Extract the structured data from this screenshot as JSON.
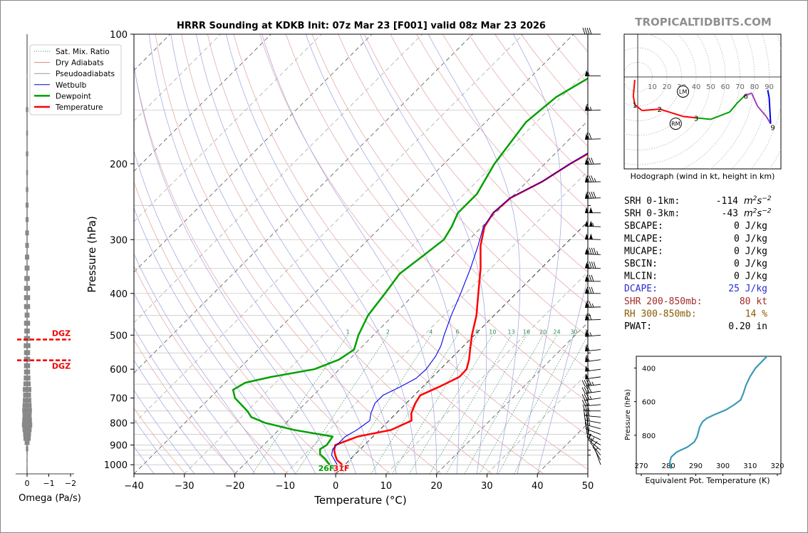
{
  "header": {
    "title": "HRRR Sounding at KDKB Init: 07z Mar 23 [F001] valid 08z Mar 23 2026",
    "watermark": "TROPICALTIDBITS.COM"
  },
  "legend": {
    "items": [
      {
        "label": "Sat. Mix. Ratio",
        "color": "#2e8b57",
        "style": "dotted"
      },
      {
        "label": "Dry Adiabats",
        "color": "#e08080",
        "style": "solid"
      },
      {
        "label": "Pseudoadiabats",
        "color": "#999999",
        "style": "solid"
      },
      {
        "label": "Wetbulb",
        "color": "#0000ee",
        "style": "solid"
      },
      {
        "label": "Dewpoint",
        "color": "#00a000",
        "style": "thick"
      },
      {
        "label": "Temperature",
        "color": "#ff0000",
        "style": "thick"
      }
    ]
  },
  "surface_labels": {
    "dewpoint": "26F",
    "temperature": "31F"
  },
  "omega": {
    "xlabel": "Omega (Pa/s)",
    "ticks": [
      "0",
      "−1",
      "−2"
    ],
    "dgz_label": "DGZ",
    "dgz_pressures": [
      512,
      572
    ]
  },
  "hodograph": {
    "caption": "Hodograph (wind in kt, height in km)",
    "ring_labels": [
      "10",
      "20",
      "30",
      "40",
      "50",
      "60",
      "70",
      "80",
      "90"
    ],
    "height_labels": [
      "1",
      "2",
      "3",
      "6",
      "9"
    ],
    "lm_label": "LM",
    "rm_label": "RM"
  },
  "indices": [
    {
      "label": "SRH 0-1km:",
      "value": "-114",
      "unit": "m2s-2",
      "color": "#000000"
    },
    {
      "label": "SRH 0-3km:",
      "value": "-43",
      "unit": "m2s-2",
      "color": "#000000"
    },
    {
      "label": "SBCAPE:",
      "value": "0 J/kg",
      "color": "#000000"
    },
    {
      "label": "MLCAPE:",
      "value": "0 J/kg",
      "color": "#000000"
    },
    {
      "label": "MUCAPE:",
      "value": "0 J/kg",
      "color": "#000000"
    },
    {
      "label": "SBCIN:",
      "value": "0 J/kg",
      "color": "#000000"
    },
    {
      "label": "MLCIN:",
      "value": "0 J/kg",
      "color": "#000000"
    },
    {
      "label": "DCAPE:",
      "value": "25 J/kg",
      "color": "#2a2ad0"
    },
    {
      "label": "SHR 200-850mb:",
      "value": "80 kt",
      "color": "#a52a2a"
    },
    {
      "label": "RH 300-850mb:",
      "value": "14 %",
      "color": "#8b5a00"
    },
    {
      "label": "PWAT:",
      "value": "0.20 in",
      "color": "#000000"
    }
  ],
  "theta_e": {
    "xlabel": "Equivalent Pot. Temperature (K)",
    "ylabel": "Pressure (hPa)",
    "x_ticks": [
      "270",
      "280",
      "290",
      "300",
      "310",
      "320"
    ],
    "y_ticks": [
      "400",
      "600",
      "800"
    ]
  },
  "chart_data": {
    "type": "line",
    "title": "HRRR Sounding at KDKB Init: 07z Mar 23 [F001] valid 08z Mar 23 2026",
    "xlabel": "Temperature (°C)",
    "ylabel": "Pressure (hPa)",
    "x_ticks": [
      -40,
      -30,
      -20,
      -10,
      0,
      10,
      20,
      30,
      40,
      50
    ],
    "y_ticks": [
      100,
      200,
      300,
      400,
      500,
      600,
      700,
      800,
      900,
      1000
    ],
    "xlim": [
      -40,
      50
    ],
    "ylim": [
      1050,
      100
    ],
    "y_scale": "log",
    "mixing_ratio_labels": [
      "1",
      "2",
      "4",
      "6",
      "8",
      "10",
      "13",
      "16",
      "20",
      "24",
      "30",
      "36"
    ],
    "series": [
      {
        "name": "Temperature",
        "color": "#ff0000",
        "points": [
          [
            1000,
            -0.5
          ],
          [
            975,
            -2.5
          ],
          [
            950,
            -3.8
          ],
          [
            925,
            -5
          ],
          [
            900,
            -5.8
          ],
          [
            860,
            -3
          ],
          [
            830,
            2.3
          ],
          [
            790,
            4.5
          ],
          [
            760,
            3
          ],
          [
            720,
            1.8
          ],
          [
            690,
            1.2
          ],
          [
            660,
            3.2
          ],
          [
            625,
            5.3
          ],
          [
            600,
            5.2
          ],
          [
            570,
            3.8
          ],
          [
            540,
            2
          ],
          [
            500,
            -0.5
          ],
          [
            450,
            -3.5
          ],
          [
            400,
            -7.5
          ],
          [
            350,
            -12
          ],
          [
            310,
            -16.5
          ],
          [
            280,
            -19.5
          ],
          [
            260,
            -20.5
          ],
          [
            240,
            -20
          ],
          [
            220,
            -17
          ],
          [
            200,
            -15
          ],
          [
            180,
            -12
          ],
          [
            160,
            -10
          ],
          [
            140,
            -8
          ],
          [
            120,
            -7
          ],
          [
            100,
            -7.5
          ]
        ]
      },
      {
        "name": "Dewpoint",
        "color": "#00a000",
        "points": [
          [
            1000,
            -3
          ],
          [
            970,
            -5
          ],
          [
            945,
            -7
          ],
          [
            920,
            -8
          ],
          [
            900,
            -7.5
          ],
          [
            860,
            -8
          ],
          [
            830,
            -17
          ],
          [
            800,
            -24
          ],
          [
            775,
            -28
          ],
          [
            750,
            -30
          ],
          [
            700,
            -35
          ],
          [
            670,
            -37
          ],
          [
            645,
            -36
          ],
          [
            625,
            -32
          ],
          [
            600,
            -25
          ],
          [
            570,
            -22
          ],
          [
            540,
            -21
          ],
          [
            500,
            -23
          ],
          [
            450,
            -25
          ],
          [
            400,
            -26
          ],
          [
            360,
            -27
          ],
          [
            330,
            -26
          ],
          [
            300,
            -25
          ],
          [
            280,
            -26
          ],
          [
            260,
            -27.5
          ],
          [
            235,
            -27.5
          ],
          [
            200,
            -30
          ],
          [
            160,
            -32
          ],
          [
            140,
            -31
          ],
          [
            120,
            -27
          ],
          [
            100,
            -22
          ]
        ]
      },
      {
        "name": "Wetbulb",
        "color": "#0000ee",
        "points": [
          [
            1000,
            -1.5
          ],
          [
            950,
            -4.5
          ],
          [
            920,
            -5.5
          ],
          [
            900,
            -5.5
          ],
          [
            860,
            -5.5
          ],
          [
            830,
            -4.5
          ],
          [
            790,
            -3.8
          ],
          [
            760,
            -5
          ],
          [
            720,
            -6.2
          ],
          [
            690,
            -6.2
          ],
          [
            660,
            -4.5
          ],
          [
            630,
            -3
          ],
          [
            600,
            -2.8
          ],
          [
            560,
            -3.5
          ],
          [
            530,
            -4.5
          ],
          [
            500,
            -6
          ],
          [
            450,
            -8.5
          ],
          [
            400,
            -11
          ],
          [
            350,
            -14
          ],
          [
            310,
            -17
          ],
          [
            280,
            -19.7
          ],
          [
            260,
            -20.5
          ],
          [
            240,
            -20.2
          ],
          [
            220,
            -17
          ],
          [
            200,
            -15
          ],
          [
            180,
            -12.5
          ],
          [
            160,
            -10.5
          ],
          [
            140,
            -8.5
          ],
          [
            120,
            -7.5
          ],
          [
            100,
            -7.5
          ]
        ]
      }
    ],
    "omega_bars_pa_s": [
      [
        1000,
        0
      ],
      [
        960,
        -0.1
      ],
      [
        920,
        -0.4
      ],
      [
        890,
        -0.8
      ],
      [
        870,
        -1.2
      ],
      [
        850,
        -1.3
      ],
      [
        830,
        -1.5
      ],
      [
        810,
        -1.7
      ],
      [
        790,
        -1.6
      ],
      [
        770,
        -1.5
      ],
      [
        750,
        -1.6
      ],
      [
        730,
        -1.5
      ],
      [
        710,
        -1.4
      ],
      [
        690,
        -1.3
      ],
      [
        670,
        -1.4
      ],
      [
        650,
        -1.2
      ],
      [
        630,
        -1.1
      ],
      [
        610,
        -1.0
      ],
      [
        590,
        -1.0
      ],
      [
        570,
        -1.0
      ],
      [
        550,
        -1.0
      ],
      [
        530,
        -1.1
      ],
      [
        510,
        -1.0
      ],
      [
        490,
        -0.9
      ],
      [
        470,
        -1.0
      ],
      [
        450,
        -0.8
      ],
      [
        430,
        -1.0
      ],
      [
        410,
        -1.0
      ],
      [
        390,
        -1.0
      ],
      [
        370,
        -0.9
      ],
      [
        350,
        -0.8
      ],
      [
        330,
        -0.7
      ],
      [
        310,
        -0.6
      ],
      [
        290,
        -0.6
      ],
      [
        270,
        -0.5
      ],
      [
        250,
        -0.5
      ],
      [
        230,
        -0.4
      ],
      [
        210,
        -0.3
      ],
      [
        190,
        -0.4
      ],
      [
        170,
        -0.3
      ],
      [
        150,
        -0.4
      ],
      [
        125,
        -0.1
      ]
    ],
    "winds_dir_kt": [
      [
        1000,
        340,
        5
      ],
      [
        975,
        330,
        8
      ],
      [
        950,
        320,
        12
      ],
      [
        925,
        310,
        15
      ],
      [
        900,
        300,
        17
      ],
      [
        875,
        295,
        20
      ],
      [
        850,
        290,
        22
      ],
      [
        825,
        285,
        24
      ],
      [
        800,
        280,
        25
      ],
      [
        775,
        275,
        28
      ],
      [
        750,
        270,
        30
      ],
      [
        725,
        265,
        32
      ],
      [
        700,
        262,
        36
      ],
      [
        675,
        262,
        40
      ],
      [
        650,
        262,
        44
      ],
      [
        625,
        262,
        50
      ],
      [
        600,
        262,
        54
      ],
      [
        570,
        262,
        58
      ],
      [
        540,
        264,
        62
      ],
      [
        500,
        265,
        66
      ],
      [
        460,
        268,
        70
      ],
      [
        430,
        268,
        74
      ],
      [
        400,
        270,
        78
      ],
      [
        375,
        270,
        82
      ],
      [
        350,
        272,
        88
      ],
      [
        325,
        272,
        95
      ],
      [
        300,
        272,
        102
      ],
      [
        280,
        272,
        105
      ],
      [
        260,
        270,
        100
      ],
      [
        240,
        268,
        92
      ],
      [
        220,
        268,
        85
      ],
      [
        200,
        268,
        78
      ],
      [
        175,
        268,
        72
      ],
      [
        150,
        268,
        66
      ],
      [
        125,
        270,
        54
      ],
      [
        100,
        270,
        40
      ]
    ],
    "hodograph_km": [
      [
        0,
        -2,
        -2
      ],
      [
        0.5,
        -3,
        -13
      ],
      [
        1,
        -2,
        -19
      ],
      [
        1.5,
        3,
        -23
      ],
      [
        2,
        15,
        -22
      ],
      [
        2.5,
        31,
        -27
      ],
      [
        3,
        40,
        -28
      ],
      [
        3.5,
        50,
        -29
      ],
      [
        4,
        63,
        -24
      ],
      [
        5,
        68,
        -18
      ],
      [
        6,
        73,
        -13
      ],
      [
        6.5,
        78,
        -11
      ],
      [
        7,
        82,
        -20
      ],
      [
        8,
        88,
        -27
      ],
      [
        9,
        91,
        -32
      ],
      [
        9.3,
        90,
        -14
      ],
      [
        9.6,
        89,
        -9
      ]
    ],
    "storm_motion": {
      "lm": [
        31,
        -10
      ],
      "rm": [
        26,
        -32
      ]
    },
    "theta_e_profile_k": [
      [
        1000,
        281
      ],
      [
        960,
        280.5
      ],
      [
        930,
        281
      ],
      [
        900,
        283
      ],
      [
        870,
        287
      ],
      [
        840,
        289.5
      ],
      [
        810,
        290.5
      ],
      [
        780,
        291
      ],
      [
        750,
        291.5
      ],
      [
        720,
        292.5
      ],
      [
        700,
        294
      ],
      [
        680,
        296.5
      ],
      [
        650,
        301
      ],
      [
        620,
        304
      ],
      [
        590,
        306.5
      ],
      [
        550,
        307.5
      ],
      [
        500,
        308.5
      ],
      [
        450,
        310
      ],
      [
        400,
        312
      ],
      [
        350,
        315
      ],
      [
        300,
        318
      ]
    ]
  }
}
